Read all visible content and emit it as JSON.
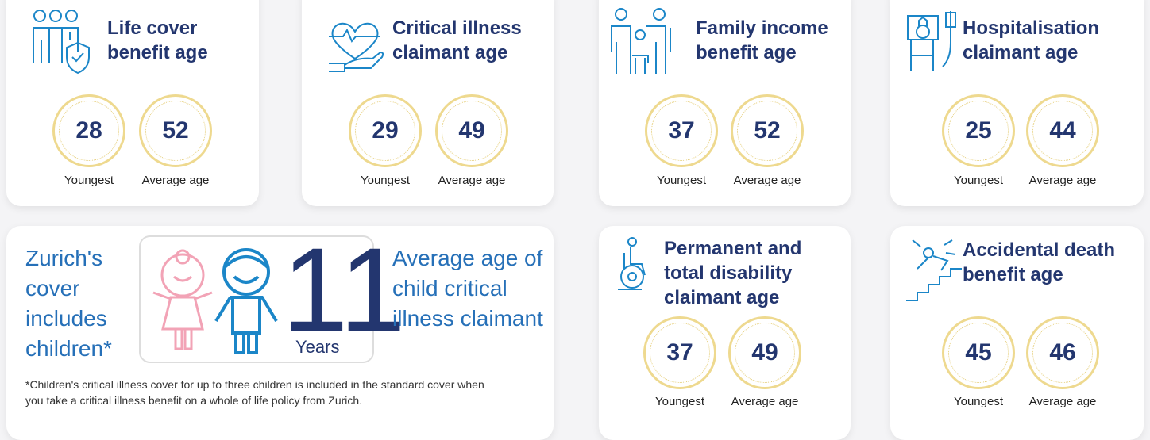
{
  "cards": [
    {
      "title": "Life cover benefit age",
      "stats": [
        {
          "value": 28,
          "label": "Youngest"
        },
        {
          "value": 52,
          "label": "Average age"
        }
      ]
    },
    {
      "title": "Critical illness claimant age",
      "stats": [
        {
          "value": 29,
          "label": "Youngest"
        },
        {
          "value": 49,
          "label": "Average age"
        }
      ]
    },
    {
      "title": "Family income benefit age",
      "stats": [
        {
          "value": 37,
          "label": "Youngest"
        },
        {
          "value": 52,
          "label": "Average age"
        }
      ]
    },
    {
      "title": "Hospitalisation claimant age",
      "stats": [
        {
          "value": 25,
          "label": "Youngest"
        },
        {
          "value": 44,
          "label": "Average age"
        }
      ]
    },
    {
      "title": "Permanent and total disability claimant age",
      "stats": [
        {
          "value": 37,
          "label": "Youngest"
        },
        {
          "value": 49,
          "label": "Average age"
        }
      ]
    },
    {
      "title": "Accidental death benefit age",
      "stats": [
        {
          "value": 45,
          "label": "Youngest"
        },
        {
          "value": 46,
          "label": "Average age"
        }
      ]
    }
  ],
  "children": {
    "heading": "Zurich's cover includes children*",
    "value": 11,
    "unit": "Years",
    "caption": "Average age of child critical illness claimant",
    "footnote": "*Children's critical illness cover for up to three children is included in the standard cover when you take a critical illness benefit on a whole of life policy from Zurich."
  }
}
